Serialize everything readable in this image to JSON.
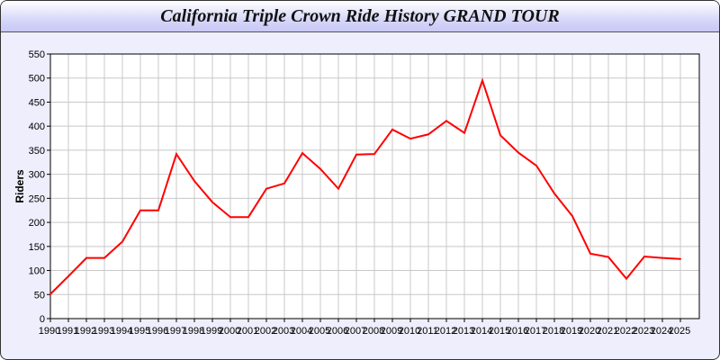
{
  "chart_data": {
    "type": "line",
    "title": "California Triple Crown Ride History GRAND TOUR",
    "xlabel": "",
    "ylabel": "Riders",
    "ylim": [
      0,
      550
    ],
    "yticks": [
      0,
      50,
      100,
      150,
      200,
      250,
      300,
      350,
      400,
      450,
      500,
      550
    ],
    "grid": true,
    "line_color": "#ff0000",
    "x": [
      1990,
      1991,
      1992,
      1993,
      1994,
      1995,
      1996,
      1997,
      1998,
      1999,
      2000,
      2001,
      2002,
      2003,
      2004,
      2005,
      2006,
      2007,
      2008,
      2009,
      2010,
      2011,
      2012,
      2013,
      2014,
      2015,
      2016,
      2017,
      2018,
      2019,
      2020,
      2021,
      2022,
      2023,
      2024,
      2025
    ],
    "values": [
      51,
      88,
      126,
      126,
      160,
      225,
      225,
      342,
      286,
      242,
      211,
      211,
      270,
      281,
      344,
      311,
      270,
      341,
      342,
      393,
      374,
      383,
      411,
      386,
      495,
      381,
      345,
      318,
      260,
      213,
      135,
      128,
      83,
      129,
      126,
      124
    ]
  }
}
